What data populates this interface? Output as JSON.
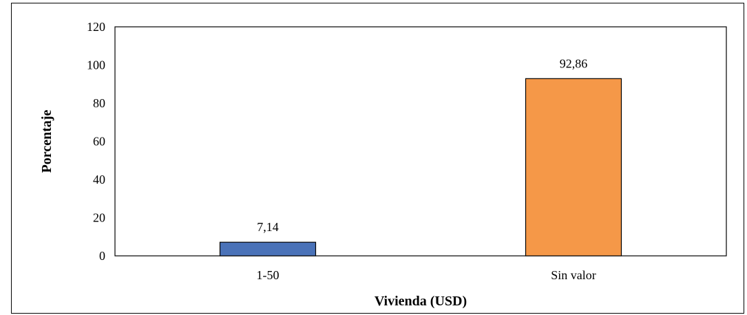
{
  "chart_data": {
    "type": "bar",
    "categories": [
      "1-50",
      "Sin valor"
    ],
    "values": [
      7.14,
      92.86
    ],
    "value_labels": [
      "7,14",
      "92,86"
    ],
    "bar_colors": [
      "#4a72b8",
      "#f59848"
    ],
    "title": "",
    "xlabel": "Vivienda (USD)",
    "ylabel": "Porcentaje",
    "ylim": [
      0,
      120
    ],
    "yticks": [
      0,
      20,
      40,
      60,
      80,
      100,
      120
    ],
    "grid": false,
    "legend": "none"
  }
}
